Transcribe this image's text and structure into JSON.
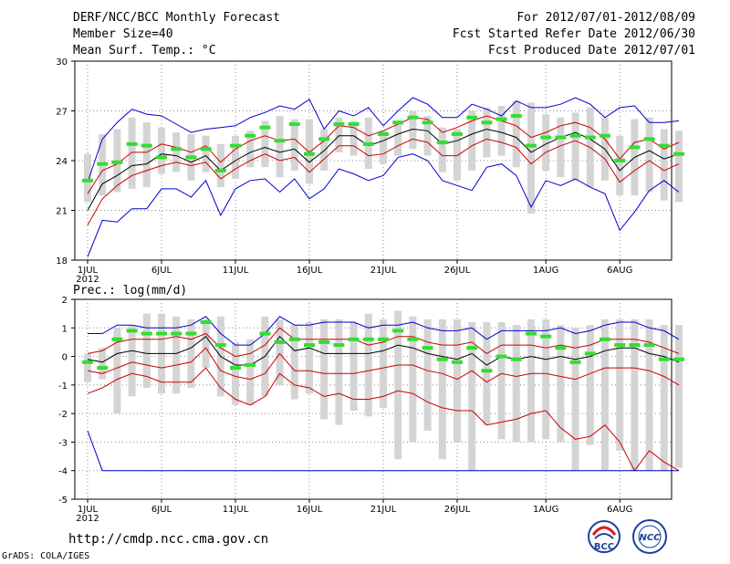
{
  "header": {
    "title": "DERF/NCC/BCC Monthly Forecast",
    "member_size": "Member Size=40",
    "variable": "Mean Surf. Temp.: °C",
    "period": "For 2012/07/01-2012/08/09",
    "started": "Fcst Started Refer Date 2012/06/30",
    "produced": "Fcst Produced Date 2012/07/01"
  },
  "footer": {
    "url": "http://cmdp.ncc.cma.gov.cn",
    "grads": "GrADS: COLA/IGES",
    "logo_bcc": "BCC",
    "logo_ncc": "NCC"
  },
  "colors": {
    "max": "#0000cc",
    "pct": "#cc0000",
    "mean": "#000000",
    "box": "#d4d4d4",
    "median": "#33dd33"
  },
  "chart_data": [
    {
      "type": "line",
      "name": "temperature",
      "title": "Mean Surf. Temp.: °C",
      "ylim": [
        18,
        30
      ],
      "yticks": [
        18,
        21,
        24,
        27,
        30
      ],
      "xlim": [
        0,
        39
      ],
      "xticks": [
        {
          "i": 0,
          "label": "1JUL",
          "sub": "2012"
        },
        {
          "i": 5,
          "label": "6JUL"
        },
        {
          "i": 10,
          "label": "11JUL"
        },
        {
          "i": 15,
          "label": "16JUL"
        },
        {
          "i": 20,
          "label": "21JUL"
        },
        {
          "i": 25,
          "label": "26JUL"
        },
        {
          "i": 31,
          "label": "1AUG"
        },
        {
          "i": 36,
          "label": "6AUG"
        }
      ],
      "grid": true,
      "series": [
        {
          "name": "max",
          "values": [
            18.2,
            20.4,
            20.3,
            21.1,
            21.1,
            22.3,
            22.3,
            21.8,
            22.8,
            20.7,
            22.3,
            22.8,
            22.9,
            22.1,
            22.9,
            21.7,
            22.3,
            23.5,
            23.2,
            22.8,
            23.1,
            24.2,
            24.4,
            24.0,
            22.8,
            22.5,
            22.2,
            23.6,
            23.8,
            23.1,
            21.2,
            22.8,
            22.5,
            22.9,
            22.4,
            22.0,
            19.8,
            20.9,
            22.2,
            22.8,
            22.1
          ]
        },
        {
          "name": "p10",
          "values": [
            20.1,
            21.7,
            22.5,
            23.1,
            23.4,
            23.7,
            23.9,
            23.7,
            23.9,
            22.9,
            23.5,
            24.0,
            24.4,
            24.0,
            24.2,
            23.3,
            24.1,
            24.9,
            24.9,
            24.3,
            24.4,
            24.9,
            25.3,
            25.1,
            24.3,
            24.3,
            24.9,
            25.3,
            25.1,
            24.8,
            23.8,
            24.5,
            24.9,
            25.2,
            24.8,
            24.1,
            22.7,
            23.4,
            24.0,
            23.4,
            23.8
          ]
        },
        {
          "name": "mean",
          "values": [
            21.0,
            22.6,
            23.1,
            23.7,
            23.8,
            24.4,
            24.3,
            23.9,
            24.3,
            23.4,
            24.0,
            24.5,
            24.8,
            24.5,
            24.7,
            23.9,
            24.6,
            25.5,
            25.5,
            24.9,
            25.2,
            25.6,
            25.9,
            25.8,
            25.0,
            25.2,
            25.6,
            25.9,
            25.7,
            25.4,
            24.5,
            25.0,
            25.4,
            25.7,
            25.3,
            24.7,
            23.4,
            24.2,
            24.6,
            24.1,
            24.4
          ]
        },
        {
          "name": "p90",
          "values": [
            22.0,
            23.4,
            23.8,
            24.5,
            24.5,
            25.0,
            24.8,
            24.5,
            24.9,
            23.9,
            24.7,
            25.2,
            25.5,
            25.2,
            25.3,
            24.5,
            25.2,
            26.1,
            26.0,
            25.5,
            25.8,
            26.2,
            26.6,
            26.5,
            25.7,
            26.0,
            26.4,
            26.7,
            26.4,
            26.1,
            25.4,
            25.7,
            26.1,
            26.3,
            26.0,
            25.3,
            24.1,
            25.1,
            25.3,
            24.7,
            25.1
          ]
        },
        {
          "name": "min_top",
          "values": [
            22.7,
            25.3,
            26.3,
            27.1,
            26.8,
            26.7,
            26.2,
            25.7,
            25.9,
            26.0,
            26.1,
            26.6,
            26.9,
            27.3,
            27.1,
            27.7,
            25.9,
            27.0,
            26.7,
            27.2,
            26.1,
            27.0,
            27.8,
            27.4,
            26.6,
            26.6,
            27.4,
            27.1,
            26.7,
            27.6,
            27.2,
            27.2,
            27.4,
            27.8,
            27.4,
            26.6,
            27.2,
            27.3,
            26.3,
            26.3,
            26.4
          ]
        }
      ],
      "box_low": [
        21.5,
        21.9,
        22.1,
        22.3,
        22.4,
        23.2,
        23.3,
        22.8,
        23.3,
        22.4,
        22.9,
        23.6,
        23.6,
        23.0,
        23.4,
        22.6,
        23.4,
        24.5,
        24.3,
        23.5,
        23.8,
        24.3,
        24.7,
        24.3,
        23.3,
        22.8,
        23.4,
        24.2,
        24.3,
        23.6,
        20.8,
        23.4,
        23.0,
        22.8,
        22.4,
        22.8,
        21.9,
        21.9,
        22.1,
        21.6,
        21.5
      ],
      "box_high": [
        24.4,
        25.6,
        25.9,
        26.6,
        26.3,
        26.0,
        25.7,
        25.6,
        25.5,
        25.0,
        25.5,
        25.8,
        26.4,
        26.7,
        26.5,
        26.5,
        25.9,
        26.6,
        26.4,
        26.6,
        25.8,
        26.4,
        27.0,
        26.7,
        26.0,
        25.9,
        27.0,
        27.2,
        27.3,
        27.6,
        27.5,
        26.8,
        26.6,
        26.9,
        27.2,
        26.6,
        25.5,
        26.5,
        26.6,
        25.9,
        25.8
      ],
      "median": [
        22.8,
        23.8,
        23.9,
        25.0,
        24.9,
        24.2,
        24.7,
        24.2,
        24.7,
        23.4,
        24.9,
        25.5,
        26.0,
        25.2,
        26.2,
        24.4,
        25.3,
        26.2,
        26.2,
        25.0,
        25.6,
        26.3,
        26.6,
        26.3,
        25.1,
        25.6,
        26.6,
        26.3,
        26.5,
        26.7,
        24.9,
        25.4,
        25.4,
        25.5,
        25.4,
        25.5,
        24.0,
        24.8,
        25.3,
        24.9,
        24.4
      ]
    },
    {
      "type": "line",
      "name": "precipitation",
      "title": "Prec.: log(mm/d)",
      "ylim": [
        -5,
        2
      ],
      "yticks": [
        -5,
        -4,
        -3,
        -2,
        -1,
        0,
        1,
        2
      ],
      "xlim": [
        0,
        39
      ],
      "xticks": [
        {
          "i": 0,
          "label": "1JUL",
          "sub": "2012"
        },
        {
          "i": 5,
          "label": "6JUL"
        },
        {
          "i": 10,
          "label": "11JUL"
        },
        {
          "i": 15,
          "label": "16JUL"
        },
        {
          "i": 20,
          "label": "21JUL"
        },
        {
          "i": 25,
          "label": "26JUL"
        },
        {
          "i": 31,
          "label": "1AUG"
        },
        {
          "i": 36,
          "label": "6AUG"
        }
      ],
      "grid": true,
      "series": [
        {
          "name": "max",
          "values": [
            0.8,
            0.8,
            1.1,
            1.1,
            1.0,
            1.0,
            1.0,
            1.1,
            1.4,
            0.8,
            0.4,
            0.4,
            0.8,
            1.4,
            1.1,
            1.1,
            1.2,
            1.2,
            1.2,
            1.0,
            1.1,
            1.1,
            1.2,
            1.0,
            0.9,
            0.9,
            1.0,
            0.6,
            0.9,
            0.9,
            0.9,
            0.9,
            1.0,
            0.8,
            0.9,
            1.1,
            1.2,
            1.2,
            1.0,
            0.9,
            0.6
          ]
        },
        {
          "name": "p90",
          "values": [
            0.1,
            0.2,
            0.5,
            0.6,
            0.6,
            0.6,
            0.7,
            0.6,
            0.8,
            0.3,
            0.0,
            0.1,
            0.4,
            1.0,
            0.6,
            0.6,
            0.6,
            0.6,
            0.6,
            0.4,
            0.5,
            0.7,
            0.7,
            0.5,
            0.4,
            0.4,
            0.5,
            0.1,
            0.4,
            0.4,
            0.4,
            0.3,
            0.4,
            0.3,
            0.4,
            0.6,
            0.6,
            0.6,
            0.5,
            0.3,
            0.1
          ]
        },
        {
          "name": "mean",
          "values": [
            -0.1,
            -0.2,
            0.1,
            0.2,
            0.1,
            0.1,
            0.1,
            0.3,
            0.7,
            0.0,
            -0.3,
            -0.3,
            0.0,
            0.7,
            0.2,
            0.3,
            0.1,
            0.1,
            0.1,
            0.1,
            0.2,
            0.4,
            0.3,
            0.1,
            0.0,
            -0.1,
            0.1,
            -0.3,
            0.0,
            -0.1,
            0.0,
            -0.1,
            0.0,
            -0.1,
            0.0,
            0.2,
            0.3,
            0.3,
            0.1,
            0.0,
            -0.2
          ]
        },
        {
          "name": "p10",
          "values": [
            -0.5,
            -0.6,
            -0.4,
            -0.2,
            -0.3,
            -0.4,
            -0.3,
            -0.2,
            0.3,
            -0.5,
            -0.7,
            -0.8,
            -0.6,
            0.1,
            -0.5,
            -0.5,
            -0.6,
            -0.6,
            -0.6,
            -0.5,
            -0.4,
            -0.3,
            -0.3,
            -0.5,
            -0.6,
            -0.8,
            -0.5,
            -0.9,
            -0.6,
            -0.7,
            -0.6,
            -0.6,
            -0.7,
            -0.8,
            -0.6,
            -0.4,
            -0.4,
            -0.4,
            -0.5,
            -0.7,
            -1.0
          ]
        },
        {
          "name": "min",
          "values": [
            -1.3,
            -1.1,
            -0.8,
            -0.6,
            -0.7,
            -0.9,
            -0.9,
            -0.9,
            -0.4,
            -1.1,
            -1.5,
            -1.7,
            -1.4,
            -0.6,
            -1.0,
            -1.1,
            -1.4,
            -1.3,
            -1.5,
            -1.5,
            -1.4,
            -1.2,
            -1.3,
            -1.6,
            -1.8,
            -1.9,
            -1.9,
            -2.4,
            -2.3,
            -2.2,
            -2.0,
            -1.9,
            -2.5,
            -2.9,
            -2.8,
            -2.4,
            -3.0,
            -4.0,
            -3.3,
            -3.7,
            -4.0
          ]
        },
        {
          "name": "abs_min",
          "values": [
            -2.6,
            -4,
            -4,
            -4,
            -4,
            -4,
            -4,
            -4,
            -4,
            -4,
            -4,
            -4,
            -4,
            -4,
            -4,
            -4,
            -4,
            -4,
            -4,
            -4,
            -4,
            -4,
            -4,
            -4,
            -4,
            -4,
            -4,
            -4,
            -4,
            -4,
            -4,
            -4,
            -4,
            -4,
            -4,
            -4,
            -4,
            -4,
            -4,
            -4,
            -4
          ]
        }
      ],
      "box_low": [
        -0.9,
        -0.8,
        -2.0,
        -1.4,
        -1.1,
        -1.3,
        -1.3,
        -1.1,
        -0.4,
        -1.4,
        -1.7,
        -1.7,
        -1.4,
        -1.0,
        -1.5,
        -1.3,
        -2.2,
        -2.4,
        -1.9,
        -2.1,
        -1.8,
        -3.6,
        -3.0,
        -2.6,
        -3.6,
        -3.0,
        -4.0,
        -2.4,
        -2.9,
        -3.0,
        -3.0,
        -2.9,
        -3.0,
        -4.0,
        -3.1,
        -4.0,
        -3.3,
        -4.0,
        -4.0,
        -4.0,
        -3.9
      ],
      "box_high": [
        0.1,
        0.3,
        1.0,
        1.1,
        1.5,
        1.5,
        1.4,
        1.3,
        1.3,
        1.4,
        0.5,
        0.6,
        1.4,
        1.3,
        1.1,
        1.2,
        1.3,
        1.3,
        1.2,
        1.5,
        1.3,
        1.6,
        1.4,
        1.3,
        1.3,
        1.3,
        1.2,
        1.2,
        1.2,
        1.1,
        1.3,
        1.3,
        1.1,
        1.0,
        1.1,
        1.3,
        1.3,
        1.3,
        1.3,
        1.1,
        1.1
      ],
      "median": [
        -0.2,
        -0.4,
        0.6,
        0.9,
        0.8,
        0.8,
        0.8,
        0.8,
        1.2,
        0.4,
        -0.4,
        -0.3,
        0.8,
        0.5,
        0.6,
        0.4,
        0.5,
        0.4,
        0.6,
        0.6,
        0.6,
        0.9,
        0.6,
        0.3,
        -0.1,
        -0.2,
        0.3,
        -0.5,
        0.0,
        -0.1,
        0.8,
        0.7,
        0.3,
        -0.2,
        0.1,
        0.6,
        0.4,
        0.4,
        0.4,
        -0.1,
        -0.1
      ]
    }
  ]
}
